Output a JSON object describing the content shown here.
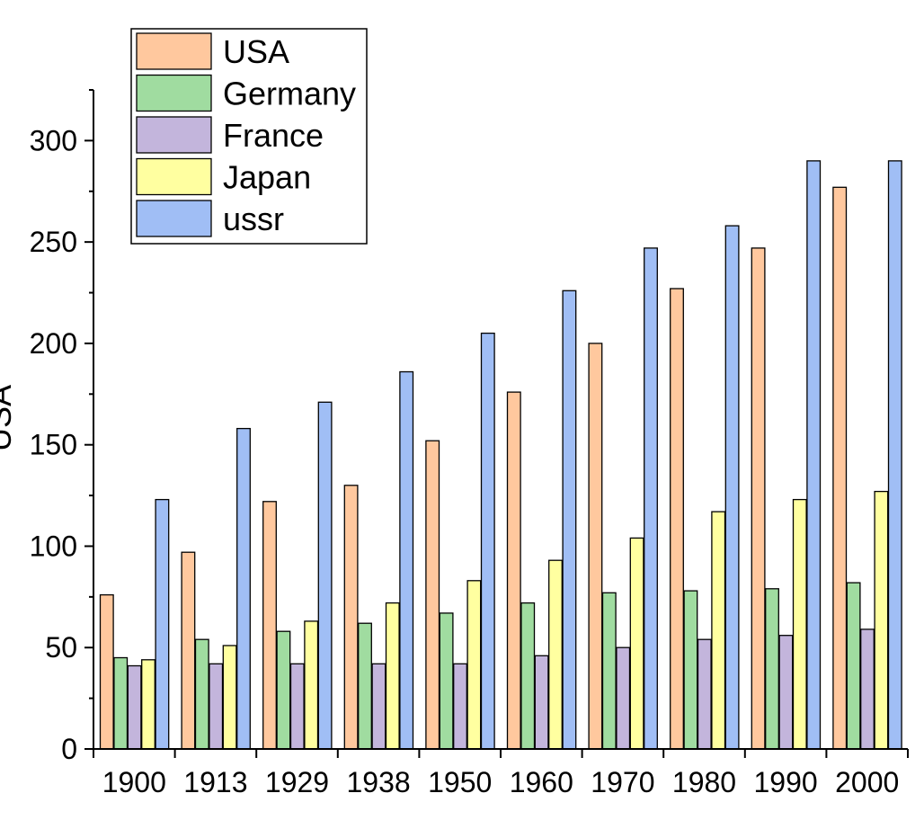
{
  "chart_data": {
    "type": "bar",
    "title": "",
    "xlabel": "",
    "ylabel": "USA",
    "ylim": [
      0,
      325
    ],
    "yticks": [
      0,
      50,
      100,
      150,
      200,
      250,
      300
    ],
    "categories": [
      "1900",
      "1913",
      "1929",
      "1938",
      "1950",
      "1960",
      "1970",
      "1980",
      "1990",
      "2000"
    ],
    "legend_position": "top-left",
    "grid": false,
    "series": [
      {
        "name": "USA",
        "color": "#FFC89E",
        "values": [
          76,
          97,
          122,
          130,
          152,
          176,
          200,
          227,
          247,
          277
        ]
      },
      {
        "name": "Germany",
        "color": "#A0DCA0",
        "values": [
          45,
          54,
          58,
          62,
          67,
          72,
          77,
          78,
          79,
          82
        ]
      },
      {
        "name": "France",
        "color": "#C3B5DC",
        "values": [
          41,
          42,
          42,
          42,
          42,
          46,
          50,
          54,
          56,
          59
        ]
      },
      {
        "name": "Japan",
        "color": "#FFFFA0",
        "values": [
          44,
          51,
          63,
          72,
          83,
          93,
          104,
          117,
          123,
          127
        ]
      },
      {
        "name": "ussr",
        "color": "#A0BEF5",
        "values": [
          123,
          158,
          171,
          186,
          205,
          226,
          247,
          258,
          290,
          290
        ]
      }
    ]
  }
}
